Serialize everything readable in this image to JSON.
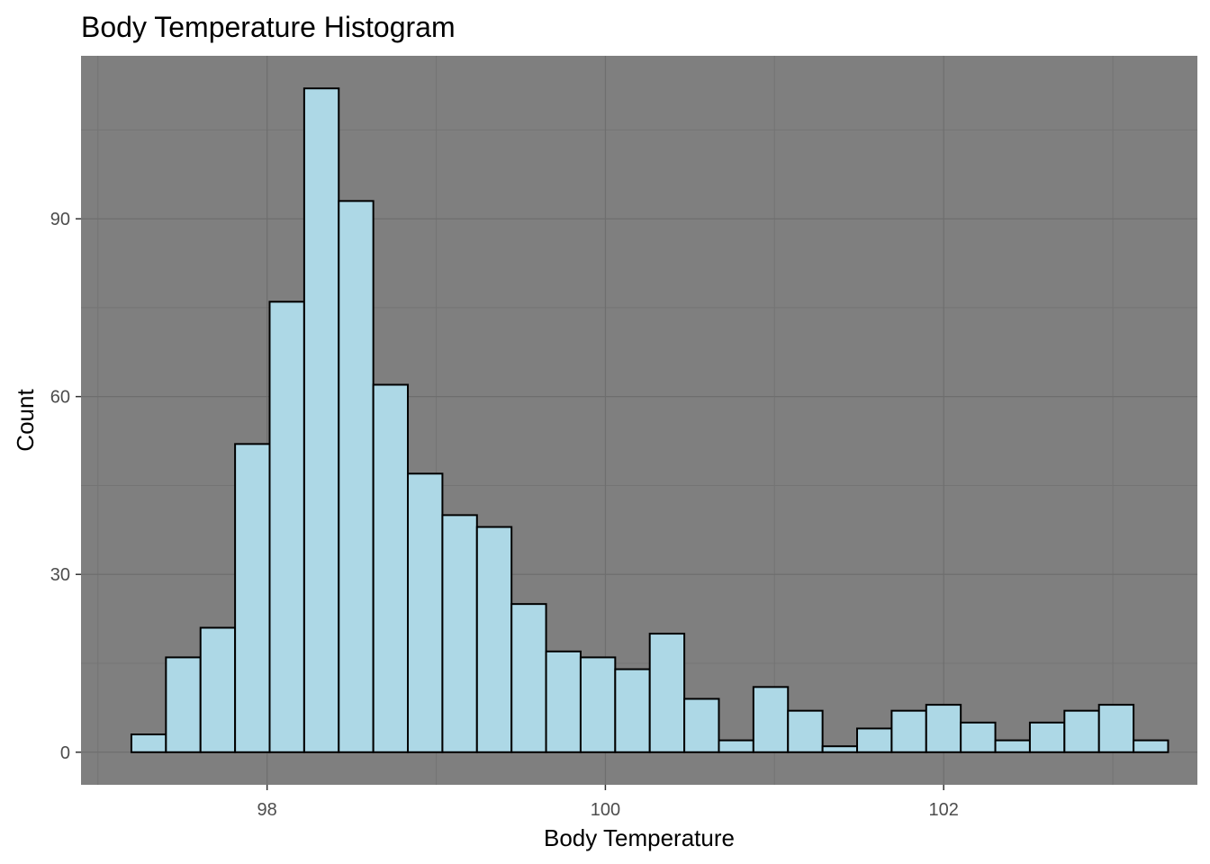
{
  "chart_data": {
    "type": "bar",
    "title": "Body Temperature Histogram",
    "xlabel": "Body Temperature",
    "ylabel": "Count",
    "bin_width": 0.2043,
    "first_bin_center": 97.3,
    "values": [
      3,
      16,
      21,
      52,
      76,
      112,
      93,
      62,
      47,
      40,
      38,
      25,
      17,
      16,
      14,
      20,
      9,
      2,
      11,
      7,
      1,
      4,
      7,
      8,
      5,
      2,
      5,
      7,
      8,
      2
    ],
    "xlim": [
      96.9,
      103.5
    ],
    "ylim": [
      -5.5,
      117.5
    ],
    "x_ticks": [
      98,
      100,
      102
    ],
    "x_tick_labels": [
      "98",
      "100",
      "102"
    ],
    "y_ticks": [
      0,
      30,
      60,
      90
    ],
    "y_tick_labels": [
      "0",
      "30",
      "60",
      "90"
    ],
    "grid": true,
    "colors": {
      "panel_bg": "#7f7f7f",
      "grid_major": "#6e6e6e",
      "grid_minor": "#747474",
      "bar_fill": "#add8e6",
      "bar_stroke": "#000000"
    }
  }
}
